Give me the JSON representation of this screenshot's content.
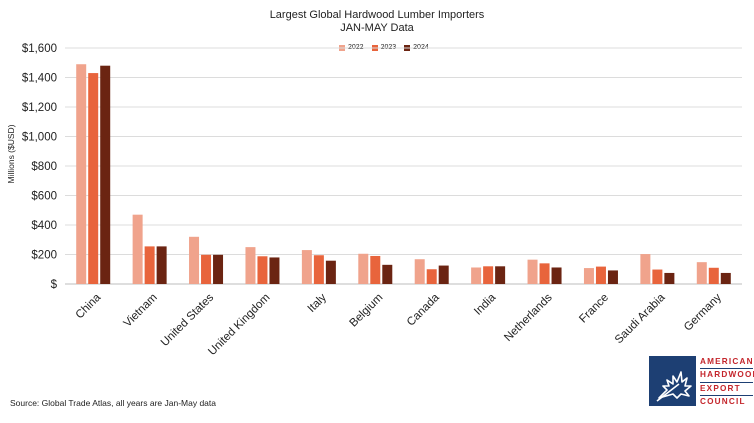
{
  "chart_data": {
    "type": "bar",
    "title": "Largest Global Hardwood Lumber Importers",
    "subtitle": "JAN-MAY Data",
    "ylabel": "Millions ($USD)",
    "xlabel": "",
    "ylim": [
      0,
      1600
    ],
    "yticks": [
      0,
      200,
      400,
      600,
      800,
      1000,
      1200,
      1400,
      1600
    ],
    "ytick_labels": [
      "$",
      "$200",
      "$400",
      "$600",
      "$800",
      "$1,000",
      "$1,200",
      "$1,400",
      "$1,600"
    ],
    "grid": true,
    "legend_position": "top-center",
    "categories": [
      "China",
      "Vietnam",
      "United States",
      "United Kingdom",
      "Italy",
      "Belgium",
      "Canada",
      "India",
      "Netherlands",
      "France",
      "Saudi Arabia",
      "Germany"
    ],
    "series": [
      {
        "name": "2022",
        "color": "#f0a38c",
        "values": [
          1490,
          470,
          320,
          250,
          230,
          205,
          168,
          112,
          165,
          108,
          203,
          148
        ]
      },
      {
        "name": "2023",
        "color": "#e8643c",
        "values": [
          1430,
          255,
          198,
          188,
          195,
          190,
          100,
          120,
          140,
          118,
          98,
          110
        ]
      },
      {
        "name": "2024",
        "color": "#6b2412",
        "values": [
          1480,
          255,
          198,
          180,
          158,
          130,
          125,
          120,
          112,
          92,
          75,
          75
        ]
      }
    ]
  },
  "source": "Source: Global Trade Atlas, all years are Jan-May data",
  "logo": {
    "lines": [
      "AMERICAN",
      "HARDWOOD",
      "EXPORT",
      "COUNCIL"
    ],
    "icon": "leaf-icon",
    "box_color": "#1d3f73",
    "text_color": "#c4252b"
  }
}
